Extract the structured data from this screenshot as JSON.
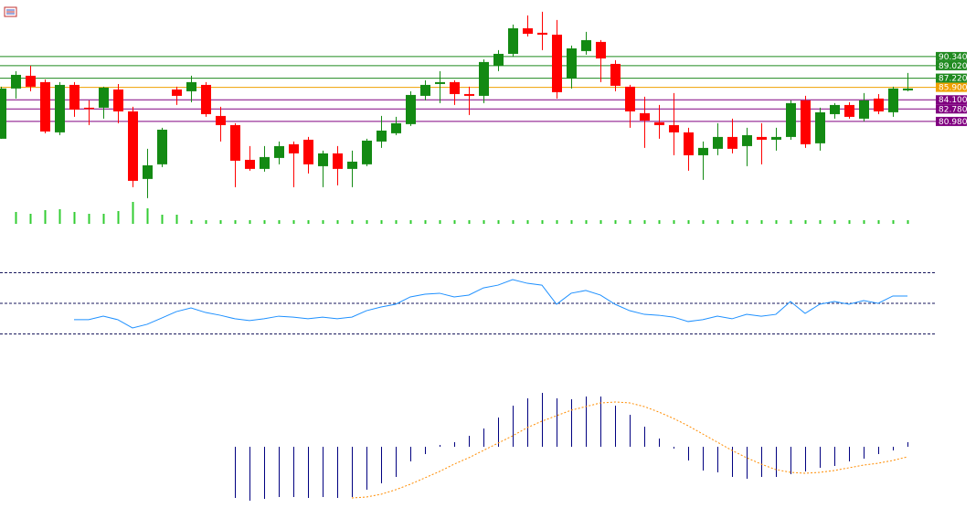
{
  "chart_data": [
    {
      "type": "candlestick",
      "ylim": [
        69.5,
        98.5
      ],
      "yticks": [
        {
          "value": 90.34,
          "label": "90.340"
        },
        {
          "value": 89.02,
          "label": "89.020"
        },
        {
          "value": 87.22,
          "label": "87.220"
        },
        {
          "value": 85.9,
          "label": "85.900"
        },
        {
          "value": 84.1,
          "label": "84.100"
        },
        {
          "value": 82.78,
          "label": "82.780"
        },
        {
          "value": 80.98,
          "label": "80.980"
        }
      ],
      "ytick_colors": [
        "#1f8a1f",
        "#1f8a1f",
        "#1f8a1f",
        "#f0a000",
        "#800080",
        "#800080",
        "#800080"
      ],
      "up_color": "#138a13",
      "down_color": "#ff0000",
      "open": [
        78.48,
        85.73,
        87.57,
        86.65,
        79.4,
        86.25,
        82.96,
        82.96,
        85.59,
        82.43,
        72.68,
        74.79,
        85.59,
        85.33,
        86.25,
        81.77,
        80.45,
        75.44,
        74.13,
        75.71,
        77.69,
        78.34,
        74.52,
        76.37,
        74.13,
        74.79,
        78.08,
        79.27,
        80.59,
        84.67,
        86.38,
        86.65,
        84.93,
        84.67,
        89.02,
        90.73,
        94.42,
        93.77,
        93.5,
        87.18,
        91.13,
        92.45,
        89.28,
        85.99,
        82.17,
        80.85,
        80.45,
        79.4,
        76.1,
        77.03,
        78.74,
        77.42,
        78.74,
        78.34,
        78.74,
        84.01,
        77.82,
        82.03,
        83.35,
        81.38,
        84.28,
        82.3,
        85.46
      ],
      "high": [
        85.99,
        88.23,
        89.02,
        87.04,
        86.65,
        86.65,
        84.01,
        85.99,
        86.38,
        83.09,
        77.03,
        80.06,
        85.99,
        87.57,
        86.65,
        83.09,
        80.72,
        77.42,
        77.42,
        78.08,
        78.08,
        78.74,
        76.76,
        77.42,
        76.76,
        78.48,
        81.77,
        81.64,
        85.33,
        86.91,
        88.23,
        86.91,
        85.99,
        89.94,
        91.26,
        94.95,
        96.27,
        96.8,
        95.61,
        91.92,
        93.9,
        92.71,
        89.81,
        86.25,
        84.54,
        83.35,
        85.07,
        80.06,
        78.08,
        80.72,
        81.38,
        80.06,
        80.72,
        80.06,
        84.01,
        84.67,
        82.96,
        83.62,
        83.75,
        85.07,
        84.93,
        85.99,
        87.97
      ],
      "low": [
        78.48,
        84.28,
        85.33,
        79.27,
        79.0,
        81.64,
        80.45,
        81.38,
        80.72,
        71.49,
        69.91,
        74.39,
        83.35,
        83.75,
        81.64,
        78.08,
        71.49,
        73.86,
        73.73,
        74.79,
        71.49,
        73.47,
        71.49,
        71.75,
        71.49,
        74.52,
        77.16,
        79.0,
        80.32,
        84.01,
        83.62,
        83.35,
        81.9,
        83.62,
        88.23,
        90.34,
        93.24,
        91.26,
        84.28,
        85.73,
        90.6,
        86.65,
        85.33,
        80.06,
        77.16,
        78.48,
        76.1,
        73.86,
        72.55,
        76.1,
        76.37,
        74.52,
        74.79,
        76.76,
        78.34,
        77.16,
        76.76,
        81.38,
        81.38,
        80.98,
        82.03,
        81.64,
        85.33
      ],
      "close": [
        85.73,
        87.7,
        85.99,
        79.53,
        86.25,
        82.69,
        82.83,
        85.86,
        82.43,
        72.41,
        74.65,
        79.79,
        84.67,
        86.65,
        82.03,
        80.45,
        75.31,
        74.13,
        75.84,
        77.42,
        76.37,
        74.79,
        76.37,
        74.13,
        75.18,
        78.21,
        79.66,
        80.72,
        84.8,
        86.25,
        86.65,
        84.93,
        84.67,
        89.55,
        90.73,
        94.42,
        93.63,
        93.5,
        85.2,
        91.52,
        92.71,
        90.07,
        86.12,
        82.43,
        81.11,
        80.45,
        79.4,
        76.1,
        77.16,
        78.74,
        77.03,
        79.0,
        78.34,
        78.74,
        83.62,
        77.69,
        82.3,
        83.35,
        81.64,
        84.01,
        82.43,
        85.73,
        85.73
      ]
    },
    {
      "type": "bar",
      "color": "#33cc33",
      "ylim": [
        0,
        30
      ],
      "values": [
        null,
        13,
        11,
        15,
        16,
        13,
        11,
        11,
        14,
        24,
        17,
        10,
        10,
        4,
        4,
        4,
        4,
        4,
        4,
        4,
        4,
        4,
        4,
        4,
        4,
        4,
        4,
        4,
        4,
        4,
        4,
        4,
        4,
        4,
        4,
        4,
        4,
        4,
        4,
        4,
        4,
        4,
        4,
        4,
        4,
        4,
        4,
        4,
        4,
        4,
        4,
        4,
        4,
        4,
        4,
        4,
        4,
        4,
        4,
        4,
        4,
        4,
        4
      ]
    },
    {
      "type": "line",
      "color": "#1e90ff",
      "ylim": [
        0,
        100
      ],
      "levels": [
        70,
        50,
        30
      ],
      "level_color": "#1a1a5e",
      "values": [
        null,
        null,
        null,
        null,
        null,
        39.3,
        39.3,
        41.6,
        39.3,
        33.9,
        36.3,
        40.4,
        44.6,
        47.0,
        44.0,
        42.2,
        39.9,
        38.7,
        39.9,
        41.6,
        41.0,
        39.9,
        41.0,
        39.9,
        41.0,
        45.2,
        47.6,
        49.4,
        54.2,
        56.0,
        56.6,
        54.2,
        55.4,
        60.1,
        61.9,
        65.5,
        63.1,
        61.9,
        49.4,
        56.6,
        58.4,
        55.4,
        49.4,
        45.2,
        42.8,
        42.2,
        41.0,
        38.1,
        39.3,
        41.6,
        39.9,
        42.8,
        41.6,
        42.8,
        51.2,
        43.4,
        49.4,
        51.2,
        49.4,
        51.8,
        50.0,
        54.8,
        54.8
      ]
    },
    {
      "type": "macd",
      "ylim": [
        -70,
        70
      ],
      "histogram_color": "#000080",
      "signal_color": "#ff8c00",
      "histogram": [
        null,
        null,
        null,
        null,
        null,
        null,
        null,
        null,
        null,
        null,
        null,
        null,
        null,
        null,
        null,
        null,
        -56,
        -59,
        -57,
        -55,
        -55,
        -56,
        -55,
        -56,
        -55,
        -47,
        -40,
        -33,
        -16,
        -8,
        2,
        5,
        12,
        20,
        32,
        45,
        53,
        59,
        53,
        52,
        55,
        55,
        45,
        35,
        22,
        9,
        -2,
        -15,
        -26,
        -28,
        -33,
        -35,
        -33,
        -33,
        -30,
        -27,
        -23,
        -21,
        -16,
        -13,
        -8,
        -4,
        5
      ],
      "signal": [
        null,
        null,
        null,
        null,
        null,
        null,
        null,
        null,
        null,
        null,
        null,
        null,
        null,
        null,
        null,
        null,
        null,
        null,
        null,
        null,
        null,
        null,
        null,
        null,
        -56,
        -55,
        -52,
        -47,
        -41,
        -34,
        -27,
        -19,
        -12,
        -4,
        4,
        12,
        21,
        28,
        34,
        40,
        44,
        48,
        49,
        48,
        44,
        38,
        31,
        23,
        14,
        5,
        -4,
        -12,
        -19,
        -25,
        -28,
        -29,
        -28,
        -26,
        -23,
        -20,
        -18,
        -15,
        -11
      ]
    }
  ]
}
